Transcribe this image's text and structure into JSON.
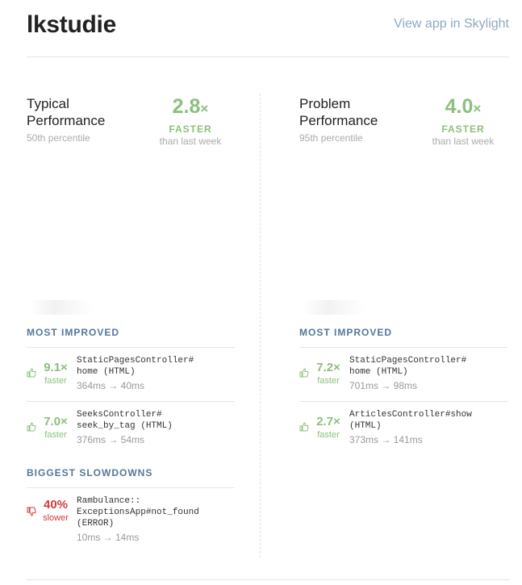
{
  "header": {
    "app_name": "lkstudie",
    "view_link": "View app in Skylight"
  },
  "colors": {
    "accent_green": "#8cbf7c",
    "slow_red": "#d23b3b",
    "section_blue": "#55779a",
    "link_blue": "#8eaac3"
  },
  "typical": {
    "title": "Typical Performance",
    "percentile": "50th percentile",
    "factor": "2.8",
    "factor_symbol": "×",
    "faster_label": "FASTER",
    "sub_label": "than last week",
    "most_improved_title": "MOST IMPROVED",
    "endpoints": [
      {
        "factor": "9.1×",
        "label": "faster",
        "name": "StaticPagesController#\nhome (HTML)",
        "timing": "364ms → 40ms",
        "icon": "thumbs-up-icon"
      },
      {
        "factor": "7.0×",
        "label": "faster",
        "name": "SeeksController#\nseek_by_tag (HTML)",
        "timing": "376ms → 54ms",
        "icon": "thumbs-up-icon"
      }
    ],
    "slowdowns_title": "BIGGEST SLOWDOWNS",
    "slowdowns": [
      {
        "factor": "40%",
        "label": "slower",
        "name": "Rambulance::\nExceptionsApp#not_found\n(ERROR)",
        "timing": "10ms → 14ms",
        "icon": "thumbs-down-icon"
      }
    ]
  },
  "problem": {
    "title": "Problem Performance",
    "percentile": "95th percentile",
    "factor": "4.0",
    "factor_symbol": "×",
    "faster_label": "FASTER",
    "sub_label": "than last week",
    "most_improved_title": "MOST IMPROVED",
    "endpoints": [
      {
        "factor": "7.2×",
        "label": "faster",
        "name": "StaticPagesController#\nhome (HTML)",
        "timing": "701ms → 98ms",
        "icon": "thumbs-up-icon"
      },
      {
        "factor": "2.7×",
        "label": "faster",
        "name": "ArticlesController#show\n(HTML)",
        "timing": "373ms → 141ms",
        "icon": "thumbs-up-icon"
      }
    ]
  }
}
